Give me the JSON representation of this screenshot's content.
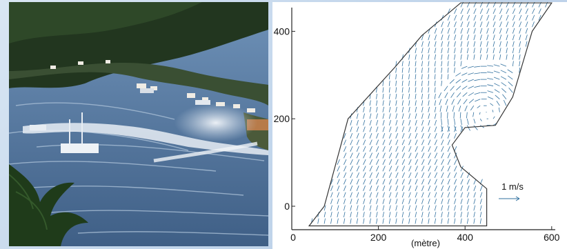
{
  "photo": {
    "icon": "tsunami-harbor-photo",
    "colors": {
      "sea": "#5a7fa8",
      "hills": "#243a20",
      "foam": "#e8eef5"
    }
  },
  "chart_data": {
    "type": "quiver",
    "xlabel": "(mètre)",
    "ylabel": "",
    "x_ticks": [
      0,
      200,
      400,
      600
    ],
    "y_ticks": [
      0,
      200,
      400
    ],
    "xlim": [
      0,
      610
    ],
    "ylim": [
      -45,
      465
    ],
    "scale_label": "1 m/s",
    "scale_magnitude": 1,
    "arrow_color": "#2f6f9e",
    "boundary_color": "#333333",
    "domain_outline": [
      [
        40,
        -45
      ],
      [
        75,
        0
      ],
      [
        130,
        200
      ],
      [
        240,
        320
      ],
      [
        300,
        390
      ],
      [
        390,
        465
      ],
      [
        600,
        465
      ],
      [
        555,
        400
      ],
      [
        510,
        250
      ],
      [
        470,
        185
      ],
      [
        400,
        180
      ],
      [
        370,
        140
      ],
      [
        390,
        90
      ],
      [
        450,
        40
      ],
      [
        450,
        -45
      ]
    ],
    "vortex_center": [
      450,
      210
    ]
  }
}
